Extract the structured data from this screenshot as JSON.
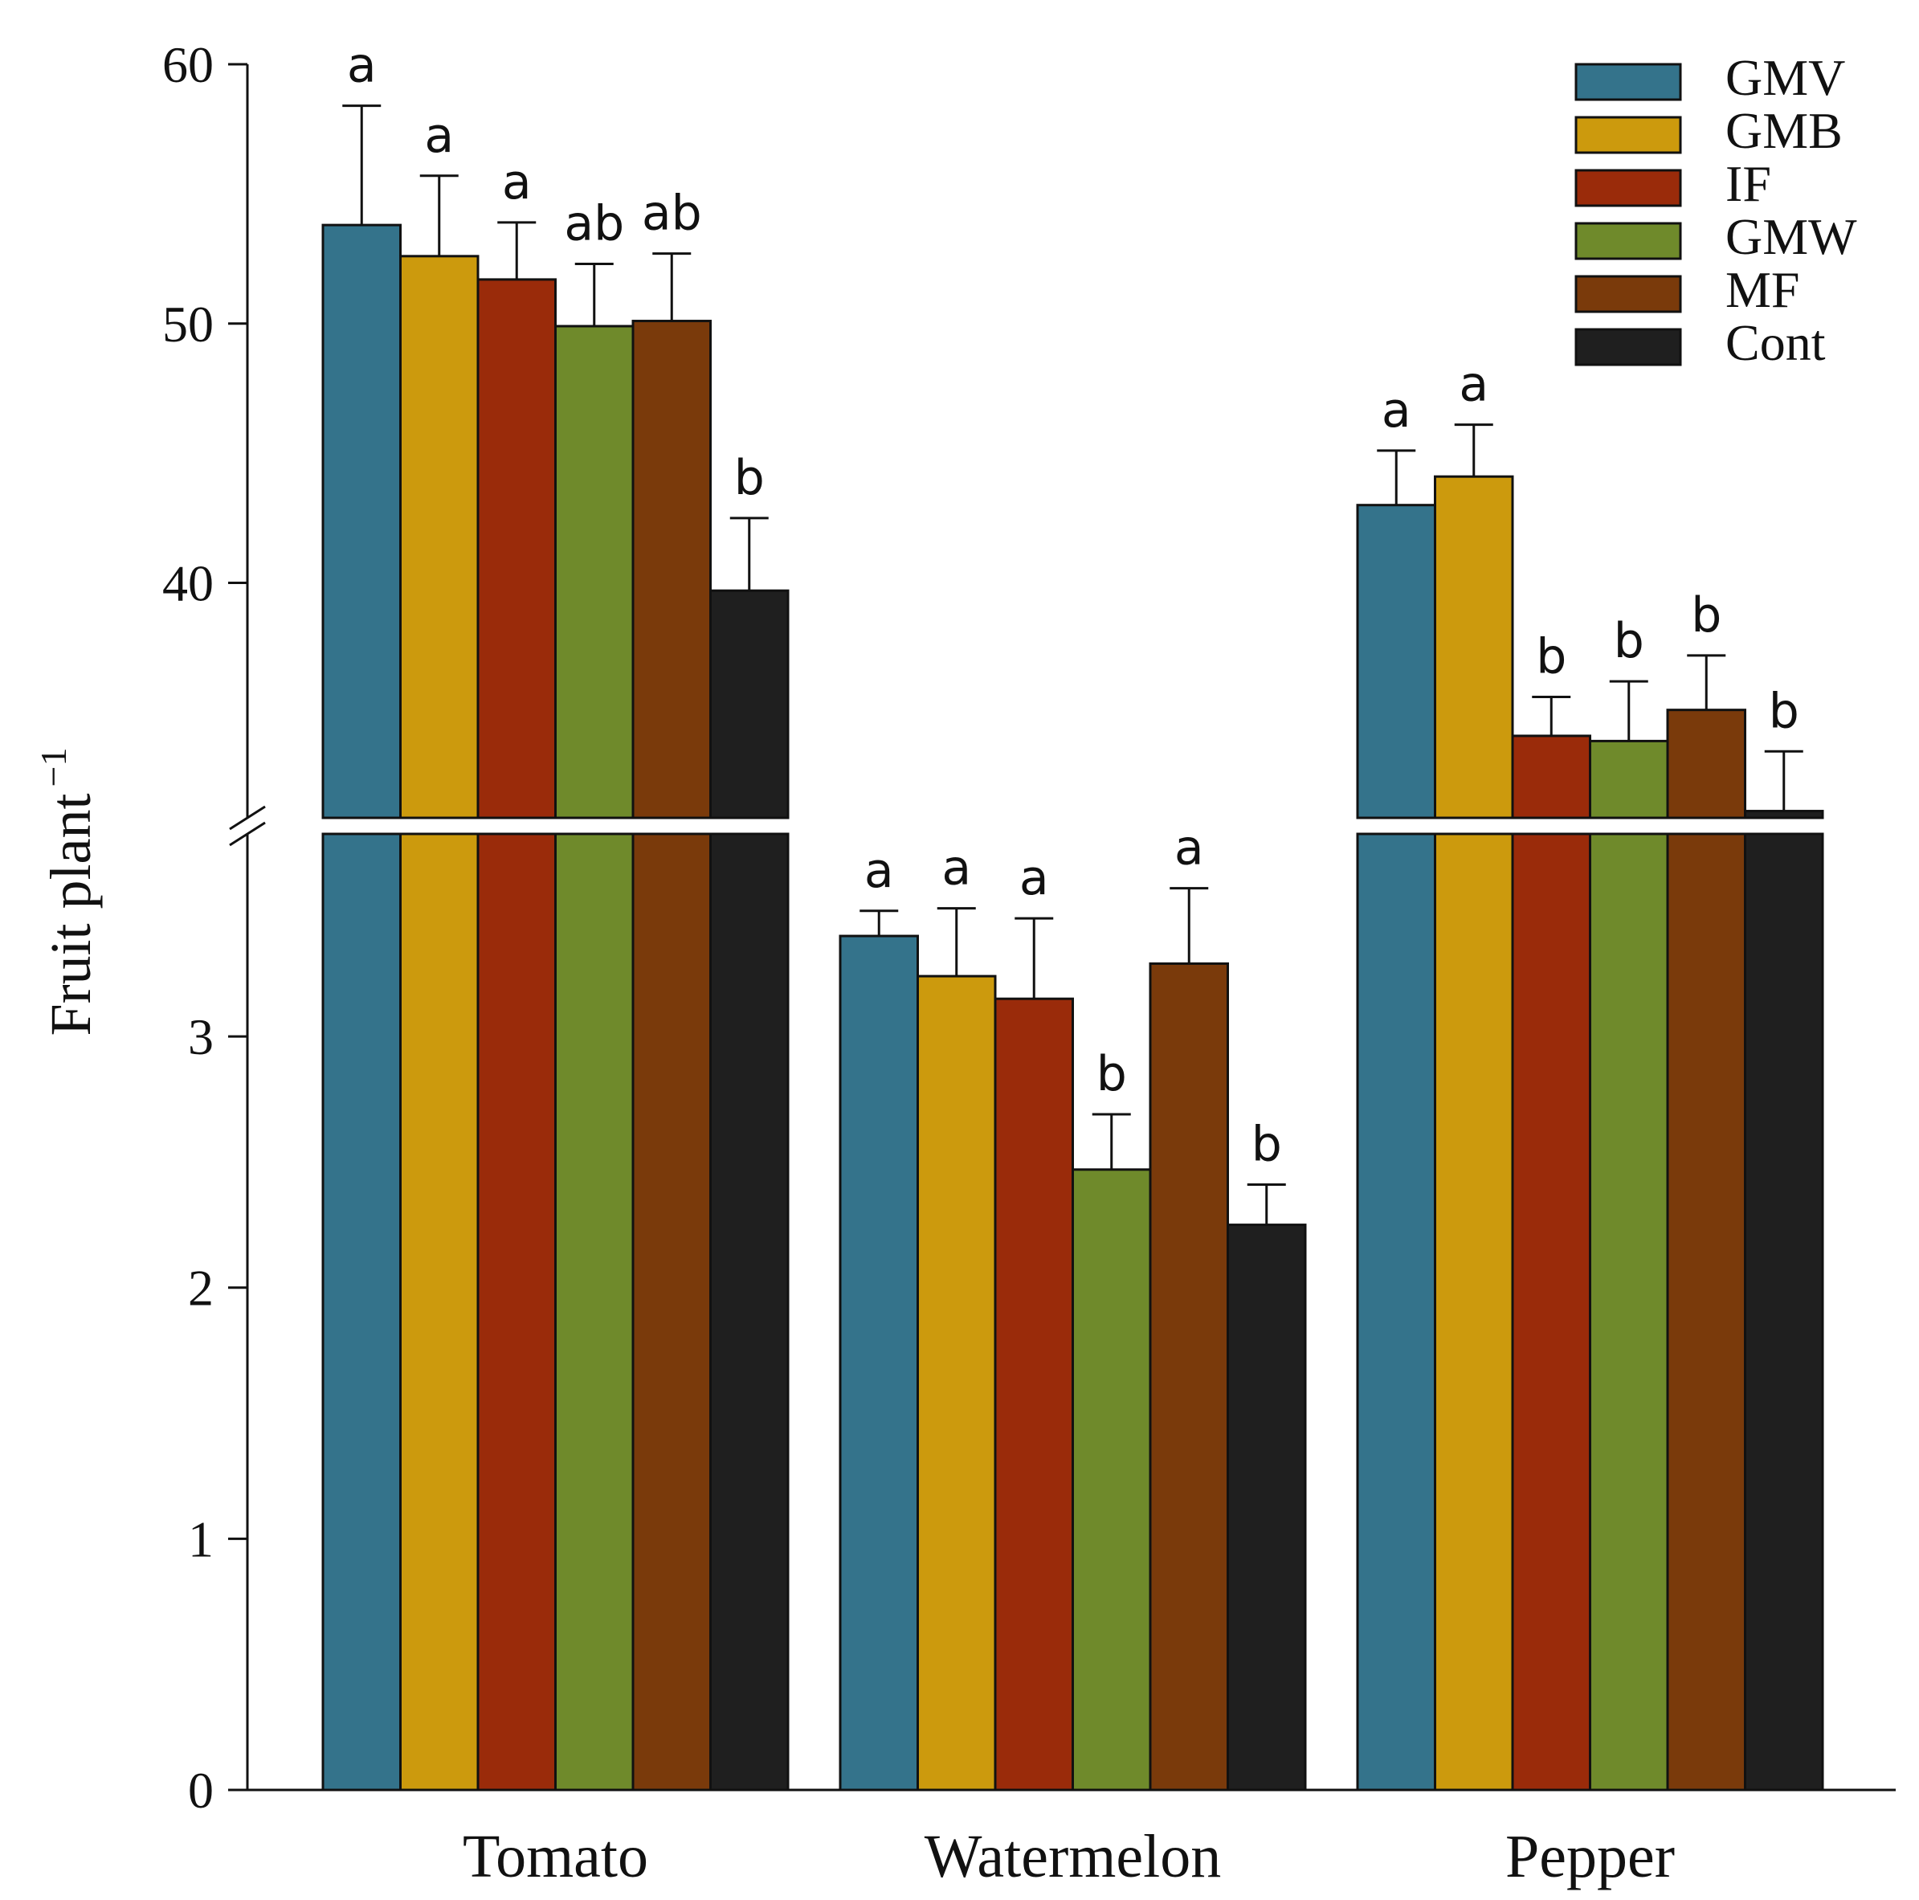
{
  "chart_data": {
    "type": "bar",
    "title": "",
    "xlabel": "",
    "ylabel": "Fruit plant",
    "ylabel_superscript": "−1",
    "categories": [
      "Tomato",
      "Watermelon",
      "Pepper"
    ],
    "y_axis_upper": {
      "range": [
        31,
        60
      ],
      "ticks": [
        "40",
        "50",
        "60"
      ],
      "tick_values": [
        40,
        50,
        60
      ]
    },
    "y_axis_lower": {
      "range": [
        0,
        3.8
      ],
      "ticks": [
        "0",
        "1",
        "2",
        "3"
      ],
      "tick_values": [
        0,
        1,
        2,
        3
      ]
    },
    "axis_break": true,
    "break_scale_per_category": {
      "Tomato": "upper",
      "Watermelon": "lower",
      "Pepper": "upper"
    },
    "series": [
      {
        "name": "GMV",
        "color": "#34738b",
        "values": [
          53.8,
          3.4,
          43.0
        ],
        "errors": [
          4.6,
          0.1,
          2.1
        ],
        "letters": [
          "a",
          "a",
          "a"
        ]
      },
      {
        "name": "GMB",
        "color": "#cc9a0d",
        "values": [
          52.6,
          3.24,
          44.1
        ],
        "errors": [
          3.1,
          0.27,
          2.0
        ],
        "letters": [
          "a",
          "a",
          "a"
        ]
      },
      {
        "name": "IF",
        "color": "#9a2b0a",
        "values": [
          51.7,
          3.15,
          34.1
        ],
        "errors": [
          2.2,
          0.32,
          1.5
        ],
        "letters": [
          "a",
          "a",
          "b"
        ]
      },
      {
        "name": "GMW",
        "color": "#6f8a2b",
        "values": [
          49.9,
          2.47,
          33.9
        ],
        "errors": [
          2.4,
          0.22,
          2.3
        ],
        "letters": [
          "ab",
          "b",
          "b"
        ]
      },
      {
        "name": "MF",
        "color": "#7a3a0b",
        "values": [
          50.1,
          3.29,
          35.1
        ],
        "errors": [
          2.6,
          0.3,
          2.1
        ],
        "letters": [
          "ab",
          "a",
          "b"
        ]
      },
      {
        "name": "Cont",
        "color": "#1f1f1f",
        "values": [
          39.7,
          2.25,
          31.2
        ],
        "errors": [
          2.8,
          0.16,
          2.3
        ],
        "letters": [
          "b",
          "b",
          "b"
        ]
      }
    ],
    "legend_position": "top-right",
    "grid": false
  }
}
